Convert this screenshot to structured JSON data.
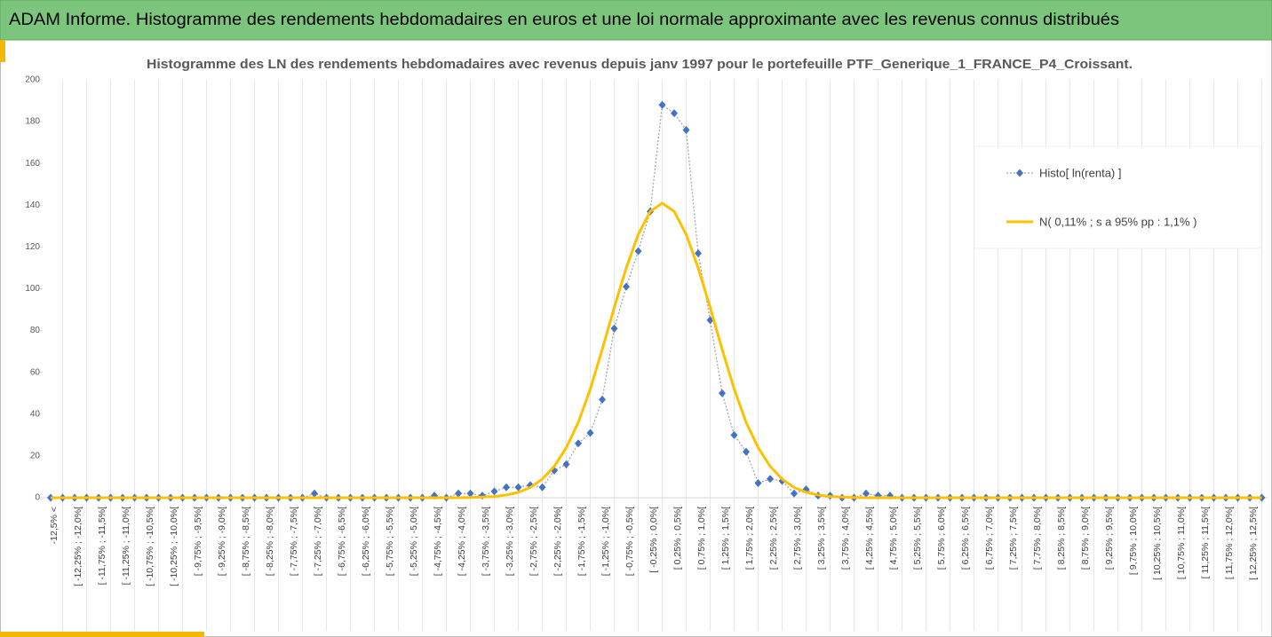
{
  "header": {
    "title": "ADAM Informe. Histogramme des rendements hebdomadaires en euros et une loi normale approximante avec les revenus connus distribués"
  },
  "chart_data": {
    "type": "line",
    "title": "Histogramme des LN des rendements hebdomadaires avec revenus depuis janv 1997 pour le portefeuille PTF_Generique_1_FRANCE_P4_Croissant.",
    "categories": [
      "-12,5% <",
      null,
      "[ -12,25% ; -12,0%[",
      null,
      "[ -11,75% ; -11,5%[",
      null,
      "[ -11,25% ; -11,0%[",
      null,
      "[ -10,75% ; -10,5%[",
      null,
      "[ -10,25% ; -10,0%[",
      null,
      "[ -9,75% ; -9,5%[",
      null,
      "[ -9,25% ; -9,0%[",
      null,
      "[ -8,75% ; -8,5%[",
      null,
      "[ -8,25% ; -8,0%[",
      null,
      "[ -7,75% ; -7,5%[",
      null,
      "[ -7,25% ; -7,0%[",
      null,
      "[ -6,75% ; -6,5%[",
      null,
      "[ -6,25% ; -6,0%[",
      null,
      "[ -5,75% ; -5,5%[",
      null,
      "[ -5,25% ; -5,0%[",
      null,
      "[ -4,75% ; -4,5%[",
      null,
      "[ -4,25% ; -4,0%[",
      null,
      "[ -3,75% ; -3,5%[",
      null,
      "[ -3,25% ; -3,0%[",
      null,
      "[ -2,75% ; -2,5%[",
      null,
      "[ -2,25% ; -2,0%[",
      null,
      "[ -1,75% ; -1,5%[",
      null,
      "[ -1,25% ; -1,0%[",
      null,
      "[ -0,75% ; -0,5%[",
      null,
      "[ -0,25% ; 0,0%[",
      null,
      "[ 0,25% ; 0,5%[",
      null,
      "[ 0,75% ; 1,0%[",
      null,
      "[ 1,25% ; 1,5%[",
      null,
      "[ 1,75% ; 2,0%[",
      null,
      "[ 2,25% ; 2,5%[",
      null,
      "[ 2,75% ; 3,0%[",
      null,
      "[ 3,25% ; 3,5%[",
      null,
      "[ 3,75% ; 4,0%[",
      null,
      "[ 4,25% ; 4,5%[",
      null,
      "[ 4,75% ; 5,0%[",
      null,
      "[ 5,25% ; 5,5%[",
      null,
      "[ 5,75% ; 6,0%[",
      null,
      "[ 6,25% ; 6,5%[",
      null,
      "[ 6,75% ; 7,0%[",
      null,
      "[ 7,25% ; 7,5%[",
      null,
      "[ 7,75% ; 8,0%[",
      null,
      "[ 8,25% ; 8,5%[",
      null,
      "[ 8,75% ; 9,0%[",
      null,
      "[ 9,25% ; 9,5%[",
      null,
      "[ 9,75% ; 10,0%[",
      null,
      "[ 10,25% ; 10,5%[",
      null,
      "[ 10,75% ; 11,0%[",
      null,
      "[ 11,25% ; 11,5%[",
      null,
      "[ 11,75% ; 12,0%[",
      null,
      "[ 12,25% ; 12,5%[",
      null
    ],
    "series": [
      {
        "name": "Histo[ ln(renta) ]",
        "color": "#4472c4",
        "line_color": "#a5a5a5",
        "marker": "diamond",
        "line_style": "dotted",
        "values": [
          0,
          0,
          0,
          0,
          0,
          0,
          0,
          0,
          0,
          0,
          0,
          0,
          0,
          0,
          0,
          0,
          0,
          0,
          0,
          0,
          0,
          0,
          2,
          0,
          0,
          0,
          0,
          0,
          0,
          0,
          0,
          0,
          1,
          0,
          2,
          2,
          1,
          3,
          5,
          5,
          6,
          5,
          13,
          16,
          26,
          31,
          47,
          81,
          101,
          118,
          137,
          188,
          184,
          176,
          117,
          85,
          50,
          30,
          22,
          7,
          9,
          8,
          2,
          4,
          1,
          1,
          0,
          0,
          2,
          1,
          1,
          0,
          0,
          0,
          0,
          0,
          0,
          0,
          0,
          0,
          0,
          0,
          0,
          0,
          0,
          0,
          0,
          0,
          0,
          0,
          0,
          0,
          0,
          0,
          0,
          0,
          0,
          0,
          0,
          0,
          0,
          0
        ]
      },
      {
        "name": "N( 0,11% ; s a 95% pp : 1,1% )",
        "color": "#ffc000",
        "line_style": "solid",
        "values": [
          0,
          0,
          0,
          0,
          0,
          0,
          0,
          0,
          0,
          0,
          0,
          0,
          0,
          0,
          0,
          0,
          0,
          0,
          0,
          0,
          0,
          0,
          0,
          0,
          0,
          0,
          0,
          0,
          0,
          0,
          0,
          0,
          0,
          0,
          0,
          0.1,
          0.3,
          0.6,
          1.3,
          2.6,
          4.9,
          8.9,
          15,
          24,
          36,
          52,
          71,
          91,
          110,
          126,
          137,
          141,
          137,
          126,
          110,
          91,
          71,
          52,
          36,
          24,
          15,
          8.9,
          4.9,
          2.6,
          1.3,
          0.6,
          0.3,
          0.1,
          0,
          0,
          0,
          0,
          0,
          0,
          0,
          0,
          0,
          0,
          0,
          0,
          0,
          0,
          0,
          0,
          0,
          0,
          0,
          0,
          0,
          0,
          0,
          0,
          0,
          0,
          0,
          0,
          0,
          0,
          0,
          0,
          0,
          0
        ]
      }
    ],
    "ylim": [
      0,
      200
    ],
    "yticks": [
      0,
      20,
      40,
      60,
      80,
      100,
      120,
      140,
      160,
      180,
      200
    ],
    "grid": "x",
    "legend": "right"
  }
}
